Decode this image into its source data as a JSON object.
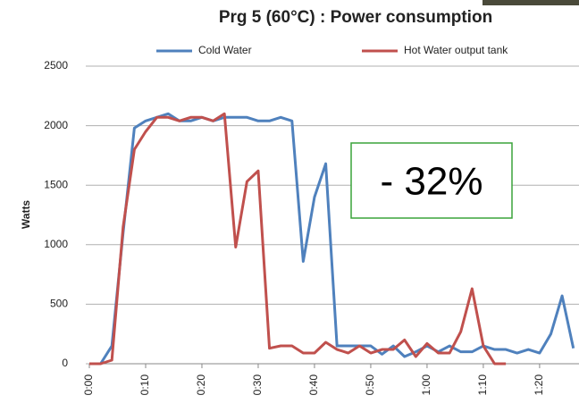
{
  "chart_data": {
    "type": "line",
    "title": "Prg 5 (60°C) : Power consumption",
    "y_label": "Watts",
    "annotation": "- 32%",
    "x": [
      0,
      2,
      4,
      6,
      8,
      10,
      12,
      14,
      16,
      18,
      20,
      22,
      24,
      26,
      28,
      30,
      32,
      34,
      36,
      38,
      40,
      42,
      44,
      46,
      48,
      50,
      52,
      54,
      56,
      58,
      60,
      62,
      64,
      66,
      68,
      70,
      72,
      74,
      76,
      78,
      80,
      82,
      84,
      86
    ],
    "xlim": [
      0,
      87
    ],
    "xticks": [
      {
        "value": 0,
        "label": "0:00"
      },
      {
        "value": 10,
        "label": "0:10"
      },
      {
        "value": 20,
        "label": "0:20"
      },
      {
        "value": 30,
        "label": "0:30"
      },
      {
        "value": 40,
        "label": "0:40"
      },
      {
        "value": 50,
        "label": "0:50"
      },
      {
        "value": 60,
        "label": "1:00"
      },
      {
        "value": 70,
        "label": "1:10"
      },
      {
        "value": 80,
        "label": "1:20"
      }
    ],
    "ylim": [
      0,
      2500
    ],
    "yticks": [
      0,
      500,
      1000,
      1500,
      2000,
      2500
    ],
    "grid": true,
    "legend": "top",
    "series": [
      {
        "name": "Cold Water",
        "color": "#4f81bd",
        "values": [
          0,
          0,
          150,
          1100,
          1980,
          2040,
          2070,
          2100,
          2040,
          2040,
          2070,
          2040,
          2070,
          2070,
          2070,
          2040,
          2040,
          2070,
          2040,
          860,
          1400,
          1680,
          150,
          150,
          150,
          150,
          80,
          150,
          60,
          100,
          150,
          100,
          150,
          100,
          100,
          150,
          120,
          120,
          90,
          120,
          90,
          250,
          570,
          130
        ]
      },
      {
        "name": "Hot Water output tank",
        "color": "#c0504d",
        "values": [
          0,
          0,
          30,
          1150,
          1800,
          1950,
          2070,
          2070,
          2040,
          2070,
          2070,
          2040,
          2100,
          980,
          1530,
          1620,
          130,
          150,
          150,
          90,
          90,
          180,
          120,
          90,
          150,
          90,
          120,
          120,
          200,
          60,
          170,
          90,
          90,
          270,
          630,
          150,
          0,
          0,
          null,
          null,
          null,
          null,
          null,
          null
        ]
      }
    ]
  }
}
